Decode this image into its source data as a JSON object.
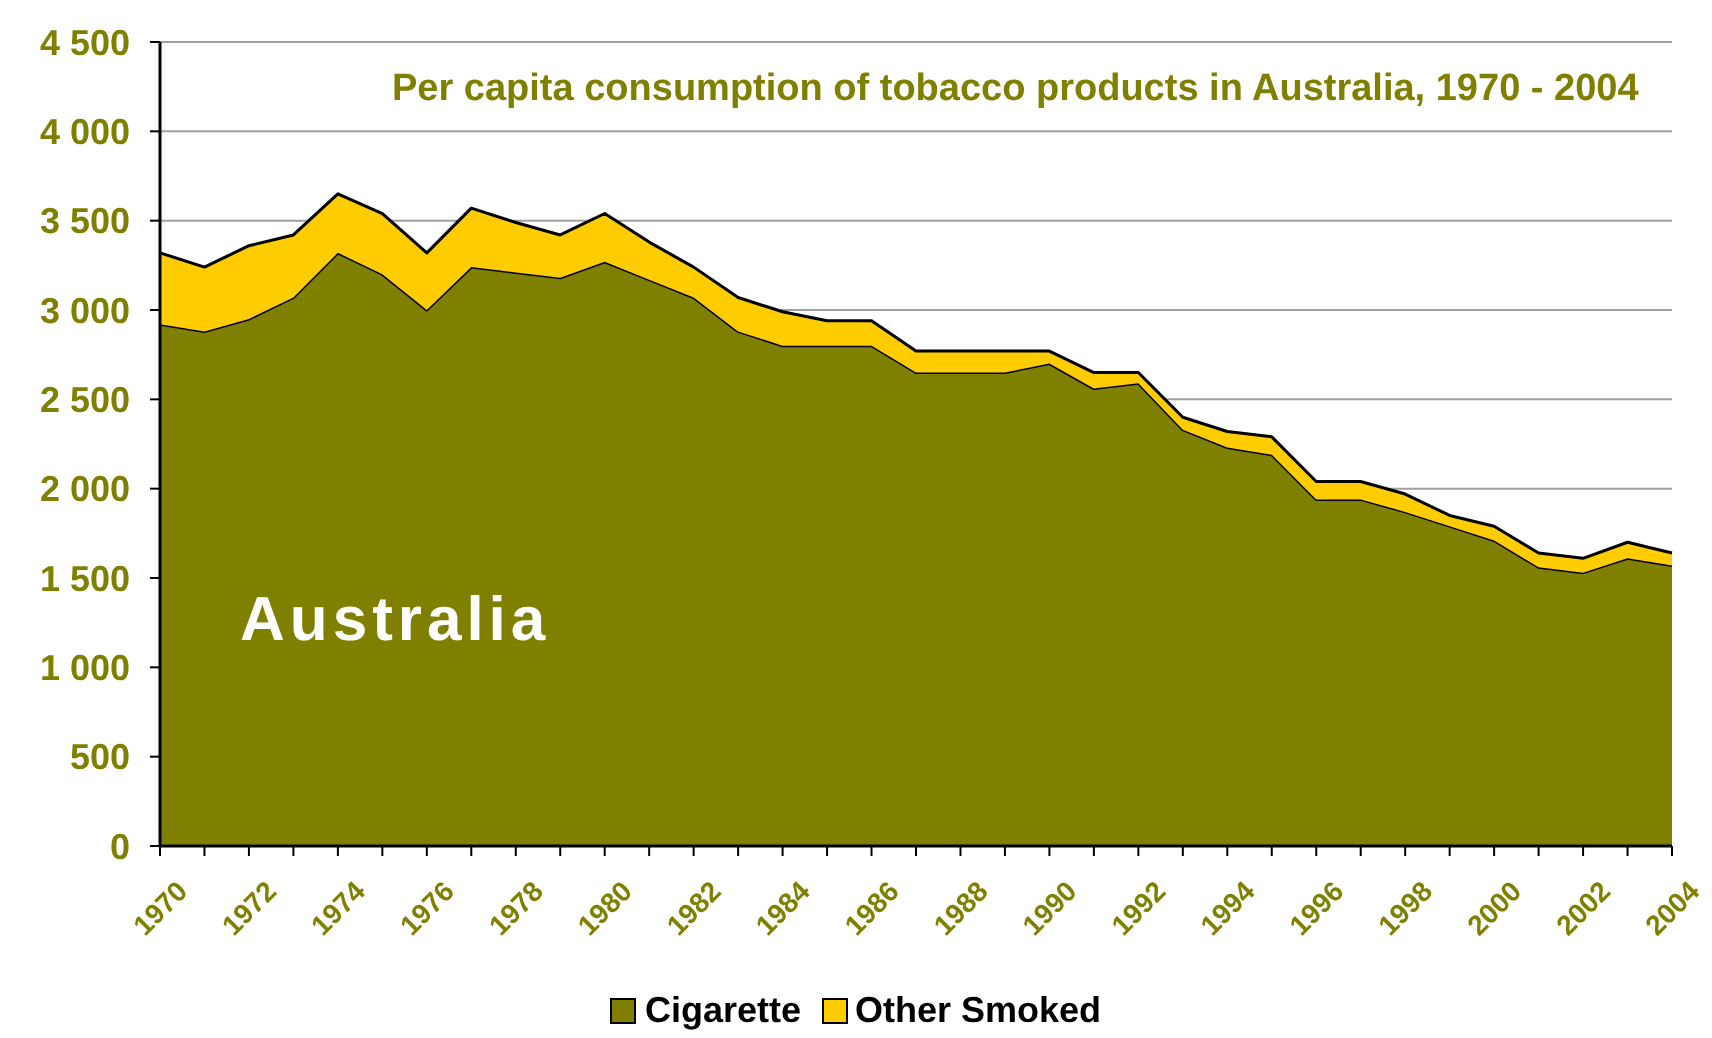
{
  "chart_data": {
    "type": "area",
    "title": "Per capita consumption of tobacco products in Australia, 1970 - 2004",
    "categories": [
      "1970",
      null,
      "1972",
      null,
      "1974",
      null,
      "1976",
      null,
      "1978",
      null,
      "1980",
      null,
      "1982",
      null,
      "1984",
      null,
      "1986",
      null,
      "1988",
      null,
      "1990",
      null,
      "1992",
      null,
      "1994",
      null,
      "1996",
      null,
      "1998",
      null,
      "2000",
      null,
      "2002",
      null,
      "2004"
    ],
    "stacked": true,
    "series": [
      {
        "name": "Cigarette",
        "color": "#808000",
        "values": [
          2920,
          2880,
          2950,
          3070,
          3320,
          3200,
          3000,
          3240,
          3210,
          3180,
          3270,
          3170,
          3070,
          2880,
          2800,
          2800,
          2800,
          2650,
          2650,
          2650,
          2700,
          2560,
          2590,
          2330,
          2230,
          2190,
          1940,
          1940,
          1870,
          1790,
          1710,
          1560,
          1530,
          1610,
          1570
        ]
      },
      {
        "name": "Other Smoked",
        "color": "#ffcc00",
        "values": [
          400,
          360,
          410,
          350,
          330,
          340,
          320,
          330,
          280,
          240,
          270,
          210,
          170,
          190,
          190,
          140,
          140,
          120,
          120,
          120,
          70,
          90,
          60,
          70,
          90,
          100,
          100,
          100,
          100,
          60,
          80,
          80,
          80,
          90,
          70
        ]
      }
    ],
    "ylim": [
      0,
      4500
    ],
    "yticks": [
      0,
      500,
      {
        "value": 1000,
        "label": "1 000"
      },
      {
        "value": 1500,
        "label": "1 500"
      },
      {
        "value": 2000,
        "label": "2 000"
      },
      {
        "value": 2500,
        "label": "2 500"
      },
      {
        "value": 3000,
        "label": "3 000"
      },
      {
        "value": 3500,
        "label": "3 500"
      },
      {
        "value": 4000,
        "label": "4 000"
      },
      {
        "value": 4500,
        "label": "4 500"
      }
    ],
    "grid": "y",
    "legend": "bottom",
    "annotations": [
      "Australia"
    ]
  }
}
